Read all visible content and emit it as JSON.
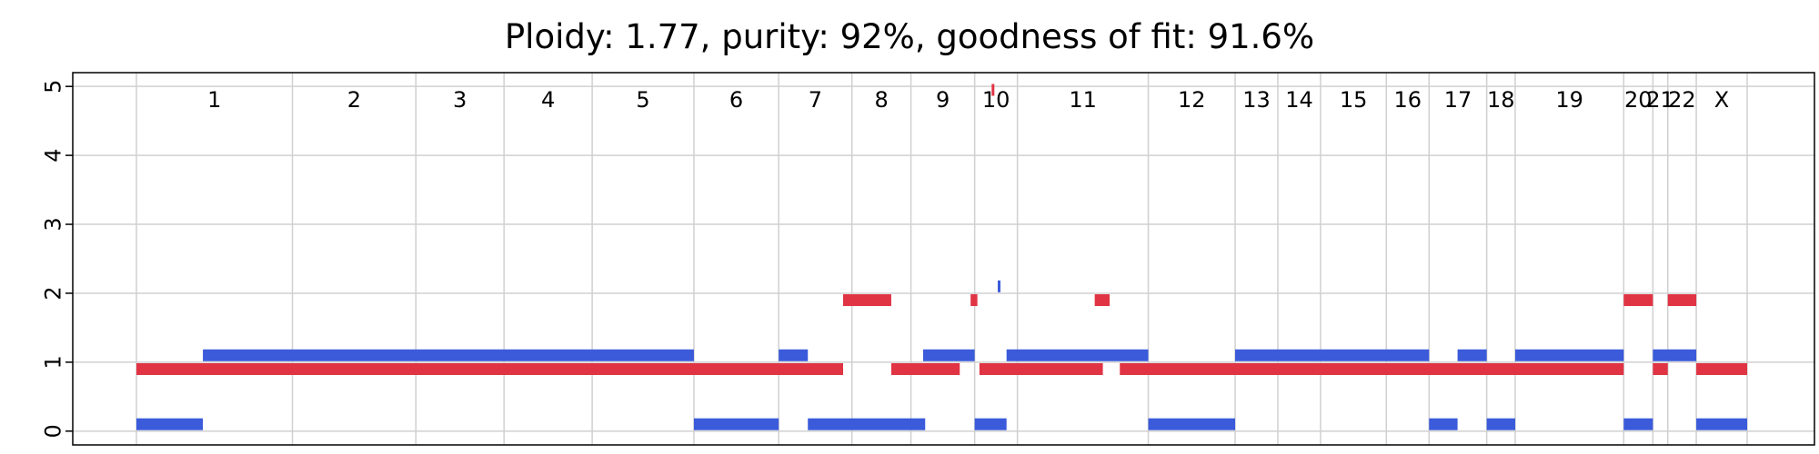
{
  "chart_data": {
    "type": "segments",
    "title": "Ploidy: 1.77, purity: 92%, goodness of fit: 91.6%",
    "xlabel": "",
    "ylabel": "",
    "ylim": [
      -0.2,
      5.2
    ],
    "yticks": [
      "0",
      "1",
      "2",
      "3",
      "4",
      "5"
    ],
    "grid": true,
    "x_extent": [
      0,
      2375
    ],
    "chromosomes": [
      {
        "label": "1",
        "start": 0,
        "end": 230
      },
      {
        "label": "2",
        "start": 230,
        "end": 412
      },
      {
        "label": "3",
        "start": 412,
        "end": 542
      },
      {
        "label": "4",
        "start": 542,
        "end": 672
      },
      {
        "label": "5",
        "start": 672,
        "end": 822
      },
      {
        "label": "6",
        "start": 822,
        "end": 947
      },
      {
        "label": "7",
        "start": 947,
        "end": 1055
      },
      {
        "label": "8",
        "start": 1055,
        "end": 1142
      },
      {
        "label": "9",
        "start": 1142,
        "end": 1236
      },
      {
        "label": "10",
        "start": 1236,
        "end": 1299
      },
      {
        "label": "11",
        "start": 1299,
        "end": 1492
      },
      {
        "label": "12",
        "start": 1492,
        "end": 1620
      },
      {
        "label": "13",
        "start": 1620,
        "end": 1683
      },
      {
        "label": "14",
        "start": 1683,
        "end": 1746
      },
      {
        "label": "15",
        "start": 1746,
        "end": 1843
      },
      {
        "label": "16",
        "start": 1843,
        "end": 1906
      },
      {
        "label": "17",
        "start": 1906,
        "end": 1991
      },
      {
        "label": "18",
        "start": 1991,
        "end": 2033
      },
      {
        "label": "19",
        "start": 2033,
        "end": 2193
      },
      {
        "label": "20",
        "start": 2193,
        "end": 2236
      },
      {
        "label": "21",
        "start": 2236,
        "end": 2258
      },
      {
        "label": "22",
        "start": 2258,
        "end": 2300
      },
      {
        "label": "X",
        "start": 2300,
        "end": 2375
      }
    ],
    "series": [
      {
        "color": "#3b5bdb",
        "segments": [
          {
            "start": 0,
            "end": 98,
            "cn": 0.1
          },
          {
            "start": 98,
            "end": 822,
            "cn": 1.1
          },
          {
            "start": 822,
            "end": 947,
            "cn": 0.1
          },
          {
            "start": 947,
            "end": 990,
            "cn": 1.1
          },
          {
            "start": 990,
            "end": 1160,
            "cn": 0.1
          },
          {
            "start": 1160,
            "end": 1236,
            "cn": 1.1
          },
          {
            "start": 1236,
            "end": 1283,
            "cn": 0.1
          },
          {
            "start": 1283,
            "end": 1492,
            "cn": 1.1
          },
          {
            "start": 1492,
            "end": 1620,
            "cn": 0.1
          },
          {
            "start": 1620,
            "end": 1906,
            "cn": 1.1
          },
          {
            "start": 1906,
            "end": 1948,
            "cn": 0.1
          },
          {
            "start": 1948,
            "end": 1991,
            "cn": 1.1
          },
          {
            "start": 1991,
            "end": 2033,
            "cn": 0.1
          },
          {
            "start": 2033,
            "end": 2193,
            "cn": 1.1
          },
          {
            "start": 2193,
            "end": 2236,
            "cn": 0.1
          },
          {
            "start": 2236,
            "end": 2300,
            "cn": 1.1
          },
          {
            "start": 2300,
            "end": 2375,
            "cn": 0.1
          },
          {
            "start": 1159,
            "end": 1163,
            "cn": 0.1
          },
          {
            "start": 1270,
            "end": 1274,
            "cn": 2.1
          }
        ]
      },
      {
        "color": "#e03444",
        "segments": [
          {
            "start": 0,
            "end": 1042,
            "cn": 0.9
          },
          {
            "start": 1042,
            "end": 1113,
            "cn": 1.9
          },
          {
            "start": 1113,
            "end": 1214,
            "cn": 0.9
          },
          {
            "start": 1230,
            "end": 1240,
            "cn": 1.9
          },
          {
            "start": 1243,
            "end": 1425,
            "cn": 0.9
          },
          {
            "start": 1413,
            "end": 1435,
            "cn": 1.9
          },
          {
            "start": 1450,
            "end": 2193,
            "cn": 0.9
          },
          {
            "start": 2193,
            "end": 2236,
            "cn": 1.9
          },
          {
            "start": 2236,
            "end": 2258,
            "cn": 0.9
          },
          {
            "start": 2258,
            "end": 2300,
            "cn": 1.9
          },
          {
            "start": 2300,
            "end": 2375,
            "cn": 0.9
          },
          {
            "start": 1261,
            "end": 1264,
            "cn": 4.95
          }
        ]
      }
    ]
  }
}
